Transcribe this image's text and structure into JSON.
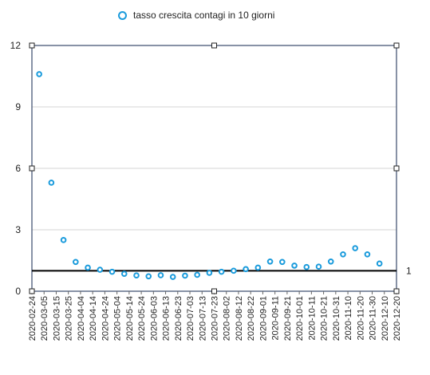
{
  "chart_data": {
    "type": "scatter",
    "title": "",
    "xlabel": "",
    "ylabel": "",
    "ylim": [
      0,
      12
    ],
    "yticks": [
      "0",
      "3",
      "6",
      "9",
      "12"
    ],
    "grid": true,
    "legend_position": "top",
    "series": [
      {
        "name": "tasso crescita contagi in 10 giorni",
        "color": "#1a9bdc",
        "marker": "hollow-circle",
        "points": [
          {
            "x": "2020-03-01",
            "y": 10.6
          },
          {
            "x": "2020-03-11",
            "y": 5.3
          },
          {
            "x": "2020-03-21",
            "y": 2.5
          },
          {
            "x": "2020-03-31",
            "y": 1.43
          },
          {
            "x": "2020-04-10",
            "y": 1.15
          },
          {
            "x": "2020-04-20",
            "y": 1.05
          },
          {
            "x": "2020-04-30",
            "y": 0.95
          },
          {
            "x": "2020-05-10",
            "y": 0.85
          },
          {
            "x": "2020-05-20",
            "y": 0.77
          },
          {
            "x": "2020-05-30",
            "y": 0.73
          },
          {
            "x": "2020-06-09",
            "y": 0.78
          },
          {
            "x": "2020-06-19",
            "y": 0.7
          },
          {
            "x": "2020-06-29",
            "y": 0.76
          },
          {
            "x": "2020-07-09",
            "y": 0.8
          },
          {
            "x": "2020-07-19",
            "y": 0.9
          },
          {
            "x": "2020-07-29",
            "y": 0.95
          },
          {
            "x": "2020-08-08",
            "y": 1.0
          },
          {
            "x": "2020-08-18",
            "y": 1.08
          },
          {
            "x": "2020-08-28",
            "y": 1.15
          },
          {
            "x": "2020-09-07",
            "y": 1.45
          },
          {
            "x": "2020-09-17",
            "y": 1.43
          },
          {
            "x": "2020-09-27",
            "y": 1.25
          },
          {
            "x": "2020-10-07",
            "y": 1.18
          },
          {
            "x": "2020-10-17",
            "y": 1.2
          },
          {
            "x": "2020-10-27",
            "y": 1.45
          },
          {
            "x": "2020-11-06",
            "y": 1.8
          },
          {
            "x": "2020-11-16",
            "y": 2.1
          },
          {
            "x": "2020-11-26",
            "y": 1.8
          },
          {
            "x": "2020-12-06",
            "y": 1.35
          }
        ]
      }
    ],
    "reference_line": {
      "y": 1,
      "label": "1",
      "color": "#000000"
    },
    "categories": [
      "2020-02-24",
      "2020-03-05",
      "2020-03-15",
      "2020-03-25",
      "2020-04-04",
      "2020-04-14",
      "2020-04-24",
      "2020-05-04",
      "2020-05-14",
      "2020-05-24",
      "2020-06-03",
      "2020-06-13",
      "2020-06-23",
      "2020-07-03",
      "2020-07-13",
      "2020-07-23",
      "2020-08-02",
      "2020-08-12",
      "2020-08-22",
      "2020-09-01",
      "2020-09-11",
      "2020-09-21",
      "2020-10-01",
      "2020-10-11",
      "2020-10-21",
      "2020-10-31",
      "2020-11-10",
      "2020-11-20",
      "2020-11-30",
      "2020-12-10",
      "2020-12-20"
    ]
  }
}
